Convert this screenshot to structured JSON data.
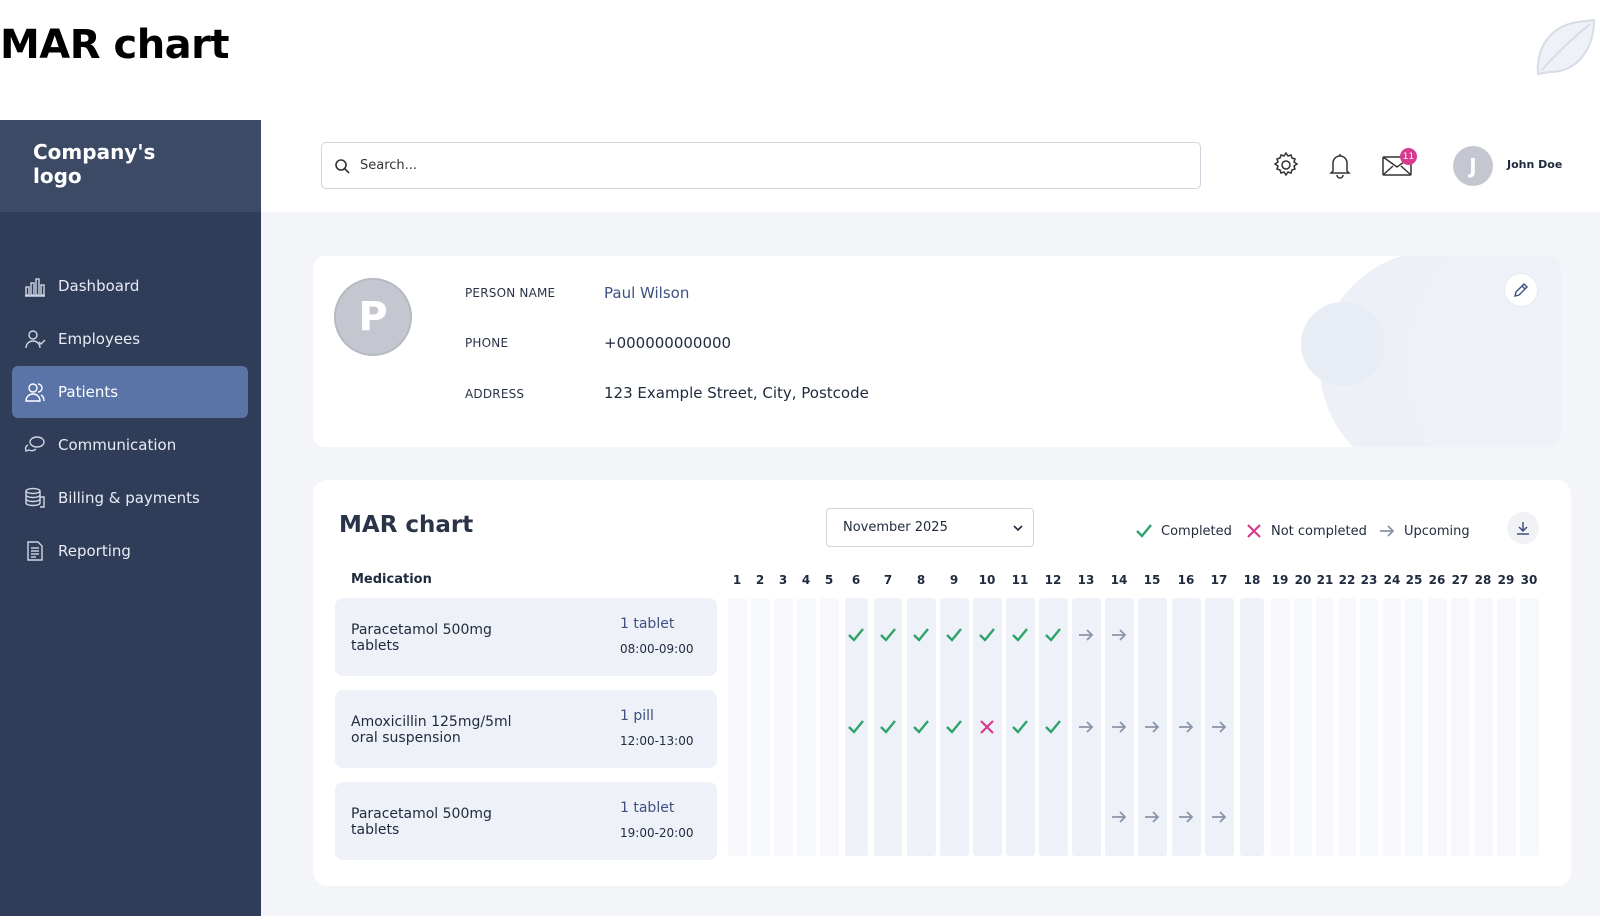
{
  "page_heading": "MAR chart",
  "sidebar": {
    "logo_text": "Company's logo",
    "items": [
      {
        "label": "Dashboard",
        "icon": "bar-chart-icon",
        "active": false
      },
      {
        "label": "Employees",
        "icon": "employees-icon",
        "active": false
      },
      {
        "label": "Patients",
        "icon": "patients-icon",
        "active": true
      },
      {
        "label": "Communication",
        "icon": "chat-icon",
        "active": false
      },
      {
        "label": "Billing & payments",
        "icon": "coins-icon",
        "active": false
      },
      {
        "label": "Reporting",
        "icon": "report-icon",
        "active": false
      }
    ]
  },
  "topbar": {
    "search_placeholder": "Search...",
    "mail_badge": "11",
    "user_initial": "J",
    "user_name": "John Doe"
  },
  "profile": {
    "avatar_initial": "P",
    "name_label": "PERSON NAME",
    "name": "Paul Wilson",
    "phone_label": "PHONE",
    "phone": "+000000000000",
    "address_label": "ADDRESS",
    "address": "123 Example Street, City, Postcode"
  },
  "mar": {
    "title": "MAR chart",
    "month": "November 2025",
    "legend": {
      "completed": "Completed",
      "not_completed": "Not completed",
      "upcoming": "Upcoming"
    },
    "colors": {
      "completed": "#2fa36b",
      "not_completed": "#d63b8f",
      "upcoming": "#8a94a8"
    },
    "medication_header": "Medication",
    "days": [
      "1",
      "2",
      "3",
      "4",
      "5",
      "6",
      "7",
      "8",
      "9",
      "10",
      "11",
      "12",
      "13",
      "14",
      "15",
      "16",
      "17",
      "18",
      "19",
      "20",
      "21",
      "22",
      "23",
      "24",
      "25",
      "26",
      "27",
      "28",
      "29",
      "30"
    ],
    "medications": [
      {
        "name": "Paracetamol 500mg tablets",
        "dose": "1 tablet",
        "time": "08:00-09:00",
        "status": {
          "6": "completed",
          "7": "completed",
          "8": "completed",
          "9": "completed",
          "10": "completed",
          "11": "completed",
          "12": "completed",
          "13": "upcoming",
          "14": "upcoming"
        }
      },
      {
        "name": "Amoxicillin 125mg/5ml oral suspension",
        "dose": "1 pill",
        "time": "12:00-13:00",
        "status": {
          "6": "completed",
          "7": "completed",
          "8": "completed",
          "9": "completed",
          "10": "not_completed",
          "11": "completed",
          "12": "completed",
          "13": "upcoming",
          "14": "upcoming",
          "15": "upcoming",
          "16": "upcoming",
          "17": "upcoming"
        }
      },
      {
        "name": "Paracetamol 500mg tablets",
        "dose": "1 tablet",
        "time": "19:00-20:00",
        "status": {
          "14": "upcoming",
          "15": "upcoming",
          "16": "upcoming",
          "17": "upcoming"
        }
      }
    ],
    "active_days": [
      "6",
      "7",
      "8",
      "9",
      "10",
      "11",
      "12",
      "13",
      "14",
      "15",
      "16",
      "17",
      "18"
    ]
  }
}
